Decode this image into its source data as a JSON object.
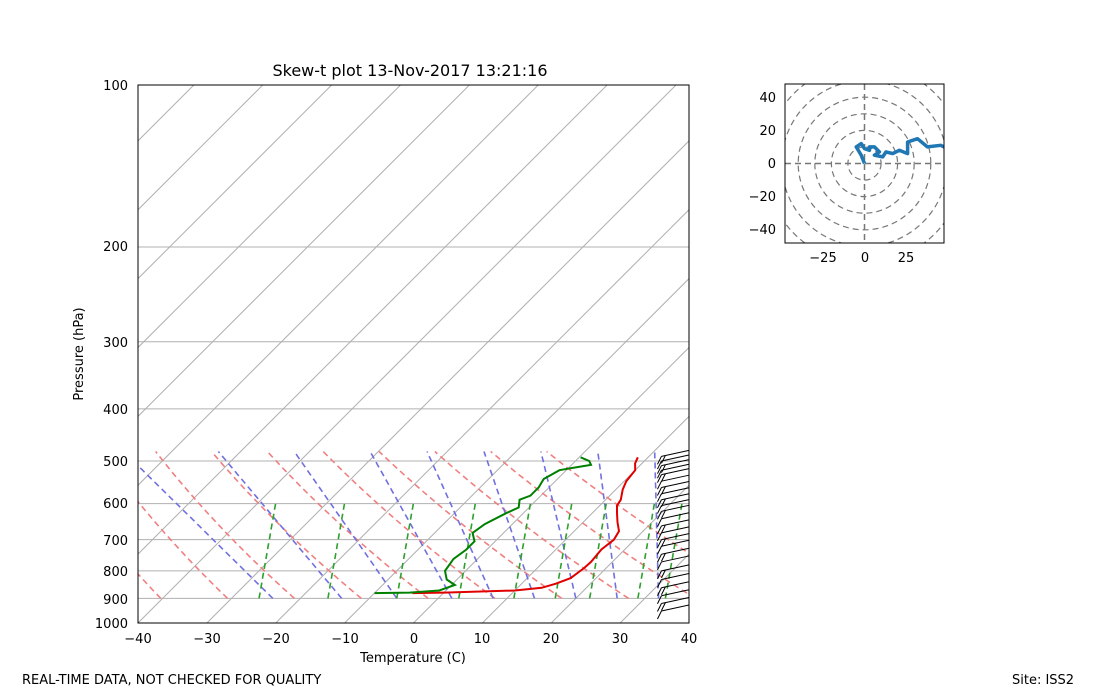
{
  "chart_data": [
    {
      "type": "line",
      "title": "Skew-t plot 13-Nov-2017 13:21:16",
      "xlabel": "Temperature (C)",
      "ylabel": "Pressure (hPa)",
      "xlim": [
        -40,
        40
      ],
      "ylim": [
        1000,
        100
      ],
      "y_scale": "log",
      "skew_degrees": 45,
      "x_ticks": [
        "−40",
        "−30",
        "−20",
        "−10",
        "0",
        "10",
        "20",
        "30",
        "40"
      ],
      "y_ticks": [
        "100",
        "200",
        "300",
        "400",
        "500",
        "600",
        "700",
        "800",
        "900",
        "1000"
      ],
      "grid": true,
      "colors": {
        "temperature": "#e00000",
        "dewpoint": "#008000",
        "dry_adiabats": "#f08080",
        "moist_adiabats": "#7070e0",
        "mixing_ratio": "#2ca02c",
        "isotherm_skew": "#b0b0b0",
        "wind_barbs": "#000000"
      },
      "series": [
        {
          "key": "temperature",
          "points": [
            [
              8.5,
              492
            ],
            [
              9.0,
              505
            ],
            [
              10.0,
              520
            ],
            [
              10.3,
              545
            ],
            [
              11.0,
              565
            ],
            [
              12.2,
              590
            ],
            [
              12.5,
              605
            ],
            [
              13.6,
              625
            ],
            [
              15.0,
              650
            ],
            [
              16.5,
              675
            ],
            [
              17.0,
              700
            ],
            [
              16.6,
              730
            ],
            [
              16.9,
              770
            ],
            [
              16.8,
              790
            ],
            [
              16.3,
              825
            ],
            [
              15.0,
              845
            ],
            [
              13.5,
              860
            ],
            [
              10.0,
              870
            ],
            [
              0.0,
              878
            ],
            [
              -4.5,
              880
            ]
          ]
        },
        {
          "key": "dewpoint",
          "points": [
            [
              0.2,
              492
            ],
            [
              2.0,
              500
            ],
            [
              2.8,
              508
            ],
            [
              0.5,
              515
            ],
            [
              -1.0,
              520
            ],
            [
              -2.0,
              540
            ],
            [
              -1.5,
              560
            ],
            [
              -1.5,
              580
            ],
            [
              -2.5,
              590
            ],
            [
              -1.5,
              610
            ],
            [
              -2.5,
              625
            ],
            [
              -4.0,
              655
            ],
            [
              -4.5,
              680
            ],
            [
              -3.0,
              705
            ],
            [
              -3.0,
              730
            ],
            [
              -3.5,
              760
            ],
            [
              -3.0,
              800
            ],
            [
              -1.5,
              830
            ],
            [
              0.5,
              850
            ],
            [
              -1.0,
              870
            ],
            [
              -5.0,
              878
            ],
            [
              -10.0,
              880
            ]
          ]
        }
      ],
      "wind_barbs": {
        "x_position_c": 36,
        "pressures": [
          490,
          500,
          510,
          520,
          530,
          545,
          560,
          575,
          590,
          605,
          620,
          640,
          660,
          680,
          700,
          720,
          745,
          770,
          800,
          830,
          860,
          890,
          920,
          950
        ]
      }
    },
    {
      "type": "line",
      "name": "hodograph",
      "xlim": [
        -48,
        48
      ],
      "ylim": [
        -48,
        48
      ],
      "x_ticks": [
        "−25",
        "0",
        "25"
      ],
      "y_ticks": [
        "40",
        "20",
        "0",
        "−20",
        "−40"
      ],
      "rings": [
        10,
        20,
        30,
        40,
        50,
        60
      ],
      "line_color": "#1f77b4",
      "points": [
        [
          0,
          0
        ],
        [
          -2,
          5
        ],
        [
          -5,
          10
        ],
        [
          -2,
          12
        ],
        [
          0,
          9
        ],
        [
          3,
          8
        ],
        [
          3,
          10
        ],
        [
          6,
          10
        ],
        [
          9,
          7
        ],
        [
          6,
          5
        ],
        [
          11,
          4
        ],
        [
          13,
          7
        ],
        [
          17,
          6
        ],
        [
          21,
          8
        ],
        [
          26,
          6
        ],
        [
          26,
          13
        ],
        [
          32,
          15
        ],
        [
          38,
          10
        ],
        [
          46,
          11
        ],
        [
          50,
          9
        ]
      ]
    }
  ],
  "footer": {
    "left": "REAL-TIME DATA, NOT CHECKED FOR QUALITY",
    "right": "Site: ISS2"
  }
}
